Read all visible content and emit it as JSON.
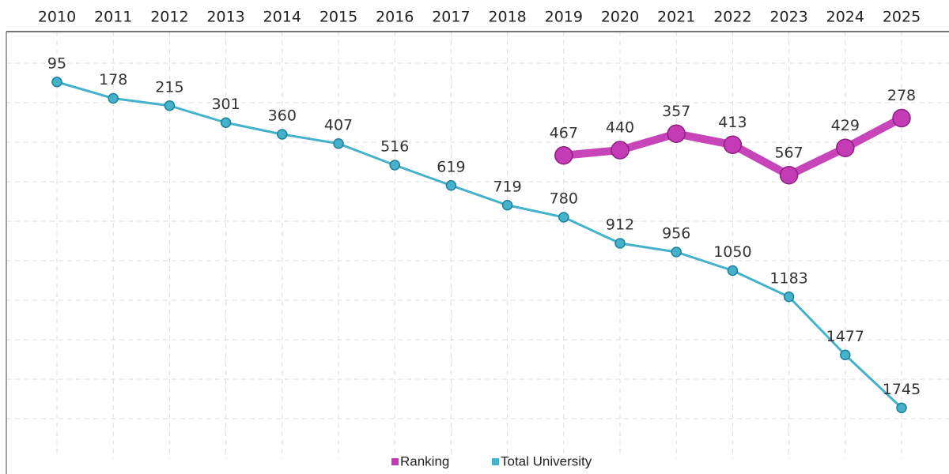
{
  "chart_data": {
    "type": "line",
    "categories": [
      "2010",
      "2011",
      "2012",
      "2013",
      "2014",
      "2015",
      "2016",
      "2017",
      "2018",
      "2019",
      "2020",
      "2021",
      "2022",
      "2023",
      "2024",
      "2025"
    ],
    "series": [
      {
        "name": "Ranking",
        "color": "#c43bb5",
        "values": [
          null,
          null,
          null,
          null,
          null,
          null,
          null,
          null,
          null,
          467,
          440,
          357,
          413,
          567,
          429,
          278
        ]
      },
      {
        "name": "Total University",
        "color": "#45b2cc",
        "values": [
          95,
          178,
          215,
          301,
          360,
          407,
          516,
          619,
          719,
          780,
          912,
          956,
          1050,
          1183,
          1477,
          1745
        ]
      }
    ],
    "ylim": [
      -160,
      2000
    ],
    "invert_y": true,
    "yticks": [
      0,
      200,
      400,
      600,
      800,
      1000,
      1200,
      1400,
      1600,
      1800
    ],
    "grid": true,
    "legend": "bottom"
  }
}
